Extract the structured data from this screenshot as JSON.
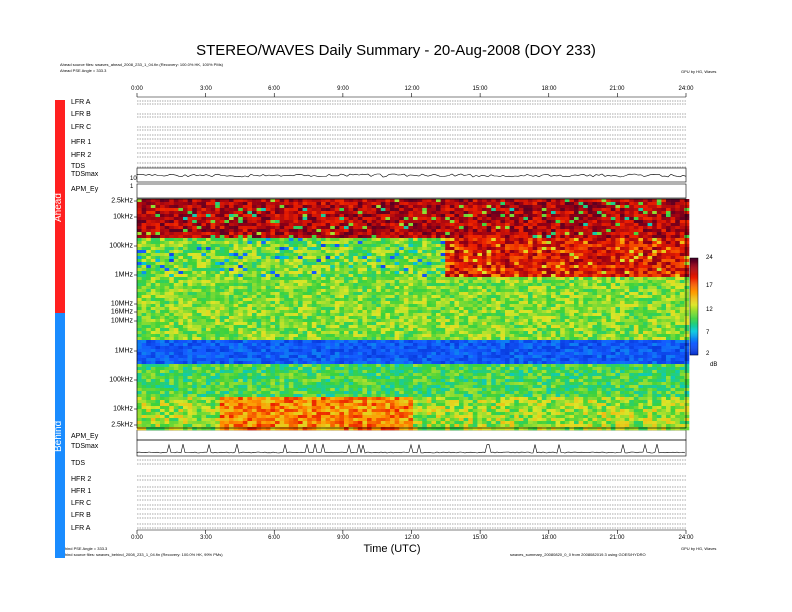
{
  "header": {
    "title": "STEREO/WAVES Daily Summary - 20-Aug-2008 (DOY 233)",
    "ahead_source": "Ahead source files: swaves_ahead_2008_233_1_04.fin (Recovery: 100.0% HK, 100% PMs)",
    "ahead_angle": "Ahead PSE Angle = 333.3",
    "credit_top": "GPU by HG, Waves",
    "behind_angle": "Behind PSE Angle = 333.3",
    "behind_source": "Behind source files: swaves_behind_2008_233_1_04.fin (Recovery: 100.0% HK, 99% PMs)",
    "credit_bottom": "GPU by HG, Waves",
    "footer_note": "swaves_summary_20080820_0_0 from 2008082019.3 using GOES/HYDRO"
  },
  "sidebar": {
    "ahead": "Ahead",
    "behind": "Behind"
  },
  "chart_data": {
    "type": "heatmap",
    "title": "STEREO/WAVES Daily Summary - 20-Aug-2008 (DOY 233)",
    "xlabel": "Time (UTC)",
    "x_ticks": [
      "0:00",
      "3:00",
      "6:00",
      "9:00",
      "12:00",
      "15:00",
      "18:00",
      "21:00",
      "24:00"
    ],
    "xlim_hours": [
      0,
      24
    ],
    "ahead_freq_ticks": [
      "2.5kHz",
      "10kHz",
      "100kHz",
      "1MHz",
      "10MHz",
      "16MHz",
      "10MHz"
    ],
    "behind_freq_ticks": [
      "1MHz",
      "100kHz",
      "10kHz",
      "2.5kHz"
    ],
    "colorbar": {
      "ticks": [
        "24",
        "17",
        "12",
        "7",
        "2"
      ],
      "unit": "dB",
      "range": [
        2,
        24
      ]
    },
    "ahead_rows": [
      "LFR A",
      "LFR B",
      "LFR C",
      "HFR 1",
      "HFR 2",
      "TDS",
      "TDSmax",
      "APM_Ey"
    ],
    "behind_rows": [
      "APM_Ey",
      "TDSmax",
      "TDS",
      "HFR 2",
      "HFR 1",
      "LFR C",
      "LFR B",
      "LFR A"
    ],
    "tds_axis_labels": [
      "10",
      "1"
    ],
    "colors": {
      "ahead_bar": "#ff2020",
      "behind_bar": "#1a8cff"
    }
  }
}
